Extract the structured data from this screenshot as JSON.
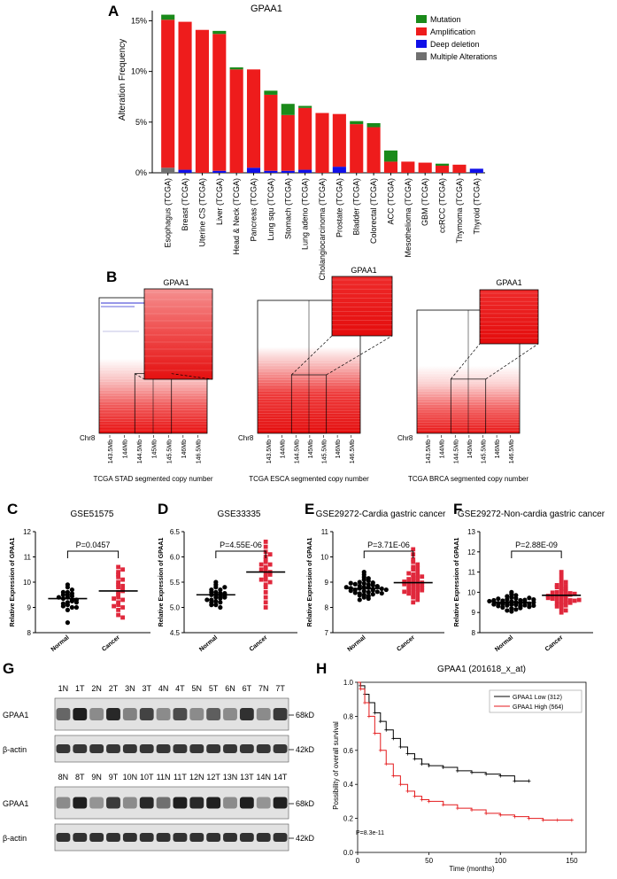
{
  "panels": {
    "A": "A",
    "B": "B",
    "C": "C",
    "D": "D",
    "E": "E",
    "F": "F",
    "G": "G",
    "H": "H"
  },
  "colors": {
    "mutation": "#1a8a1a",
    "amplification": "#ee1c1c",
    "deep_deletion": "#1010e8",
    "multiple": "#707070"
  },
  "panel_b": {
    "gene": "GPAA1",
    "chr": "Chr8",
    "ticks": [
      "143.5Mb",
      "144Mb",
      "144.5Mb",
      "145Mb",
      "145.5Mb",
      "146Mb",
      "146.5Mb"
    ],
    "titles": [
      "TCGA STAD segmented copy number",
      "TCGA ESCA segmented copy number",
      "TCGA BRCA segmented copy number"
    ]
  },
  "panel_g": {
    "lane_labels_top": [
      "1N",
      "1T",
      "2N",
      "2T",
      "3N",
      "3T",
      "4N",
      "4T",
      "5N",
      "5T",
      "6N",
      "6T",
      "7N",
      "7T"
    ],
    "lane_labels_bottom": [
      "8N",
      "8T",
      "9N",
      "9T",
      "10N",
      "10T",
      "11N",
      "11T",
      "12N",
      "12T",
      "13N",
      "13T",
      "14N",
      "14T"
    ],
    "gpaa1": "GPAA1",
    "actin": "β-actin",
    "kd_gpaa1": "68kD",
    "kd_actin": "42kD"
  },
  "chart_data": [
    {
      "id": "A",
      "type": "bar",
      "title": "GPAA1",
      "ylabel": "Alteration Frequency",
      "ylim": [
        0,
        16
      ],
      "yticks": [
        "0%",
        "5%",
        "10%",
        "15%"
      ],
      "legend": [
        "Mutation",
        "Amplification",
        "Deep deletion",
        "Multiple Alterations"
      ],
      "categories": [
        "Esophagus (TCGA)",
        "Breast (TCGA)",
        "Uterine CS (TCGA)",
        "Liver (TCGA)",
        "Head & Neck (TCGA)",
        "Pancreas (TCGA)",
        "Lung squ (TCGA)",
        "Stomach (TCGA)",
        "Lung adeno (TCGA)",
        "Cholangiocarcinoma (TCGA)",
        "Prostate (TCGA)",
        "Bladder (TCGA)",
        "Colorectal (TCGA)",
        "ACC (TCGA)",
        "Mesothelioma (TCGA)",
        "GBM (TCGA)",
        "ccRCC (TCGA)",
        "Thymoma (TCGA)",
        "Thyroid (TCGA)"
      ],
      "series": [
        {
          "name": "Multiple Alterations",
          "values": [
            0.5,
            0,
            0,
            0,
            0,
            0,
            0,
            0,
            0,
            0,
            0,
            0,
            0,
            0,
            0,
            0,
            0,
            0,
            0
          ]
        },
        {
          "name": "Deep deletion",
          "values": [
            0,
            0.3,
            0,
            0.2,
            0,
            0.5,
            0.2,
            0.2,
            0.3,
            0,
            0.6,
            0,
            0,
            0,
            0,
            0,
            0,
            0,
            0.4
          ]
        },
        {
          "name": "Amplification",
          "values": [
            14.6,
            14.6,
            14.1,
            13.5,
            10.2,
            9.7,
            7.5,
            5.5,
            6.1,
            5.9,
            5.2,
            4.8,
            4.5,
            1.1,
            1.1,
            1.0,
            0.7,
            0.8,
            0
          ]
        },
        {
          "name": "Mutation",
          "values": [
            0.5,
            0,
            0,
            0.3,
            0.2,
            0,
            0.4,
            1.1,
            0.2,
            0,
            0,
            0.3,
            0.4,
            1.1,
            0,
            0,
            0.2,
            0,
            0
          ]
        }
      ]
    },
    {
      "id": "C",
      "type": "scatter",
      "title": "GSE51575",
      "ylabel": "Relative Expression of GPAA1",
      "categories": [
        "Normal",
        "Cancer"
      ],
      "ylim": [
        8,
        12
      ],
      "yticks": [
        "8",
        "9",
        "10",
        "11",
        "12"
      ],
      "pvalue": "P=0.0457",
      "means": [
        9.35,
        9.65
      ],
      "normal": [
        9.8,
        9.6,
        9.5,
        9.4,
        9.3,
        9.2,
        9.45,
        9.35,
        9.1,
        9.0,
        9.7,
        9.55,
        9.25,
        9.15,
        8.9,
        9.05,
        9.5,
        9.3,
        9.6,
        8.4,
        9.9,
        9.2,
        9.4,
        9.0
      ],
      "cancer": [
        10.6,
        10.4,
        10.2,
        10.0,
        9.9,
        9.8,
        9.7,
        9.6,
        9.5,
        9.4,
        9.3,
        9.2,
        9.1,
        9.0,
        8.9,
        8.7,
        10.5,
        10.1,
        9.85,
        9.65,
        9.35,
        9.05,
        8.6,
        10.3
      ]
    },
    {
      "id": "D",
      "type": "scatter",
      "title": "GSE33335",
      "ylabel": "Relative Expression of GPAA1",
      "categories": [
        "Normal",
        "Cancer"
      ],
      "ylim": [
        4.5,
        6.5
      ],
      "yticks": [
        "4.5",
        "5.0",
        "5.5",
        "6.0",
        "6.5"
      ],
      "pvalue": "P=4.55E-06",
      "means": [
        5.25,
        5.7
      ],
      "normal": [
        5.5,
        5.45,
        5.4,
        5.35,
        5.3,
        5.28,
        5.25,
        5.22,
        5.2,
        5.18,
        5.15,
        5.12,
        5.1,
        5.05,
        5.0,
        5.3,
        5.25,
        5.2,
        5.35,
        5.15,
        5.1,
        5.4,
        5.05,
        5.28,
        5.22
      ],
      "cancer": [
        6.3,
        6.2,
        6.1,
        6.0,
        5.95,
        5.9,
        5.85,
        5.8,
        5.75,
        5.7,
        5.65,
        5.6,
        5.55,
        5.5,
        5.45,
        5.4,
        5.3,
        5.2,
        5.1,
        5.0,
        5.75,
        5.65,
        5.85,
        6.05,
        5.55
      ]
    },
    {
      "id": "E",
      "type": "scatter",
      "title": "GSE29272-Cardia gastric cancer",
      "ylabel": "Relative Expression of GPAA1",
      "categories": [
        "Normal",
        "Cancer"
      ],
      "ylim": [
        7,
        11
      ],
      "yticks": [
        "7",
        "8",
        "9",
        "10",
        "11"
      ],
      "pvalue": "P=3.71E-06",
      "means": [
        8.75,
        8.98
      ],
      "normal": [
        9.3,
        9.2,
        9.1,
        9.05,
        9.0,
        8.95,
        8.9,
        8.85,
        8.8,
        8.78,
        8.75,
        8.72,
        8.7,
        8.65,
        8.6,
        8.55,
        8.5,
        8.45,
        8.4,
        8.35,
        8.3,
        9.15,
        8.98,
        8.82,
        8.68,
        8.58,
        8.48,
        8.88,
        8.76,
        8.62,
        8.92,
        8.74,
        8.66,
        8.84,
        8.56,
        8.96,
        8.52,
        8.8,
        8.7,
        9.4
      ],
      "cancer": [
        10.3,
        10.1,
        9.9,
        9.8,
        9.7,
        9.6,
        9.5,
        9.4,
        9.3,
        9.25,
        9.2,
        9.15,
        9.1,
        9.05,
        9.0,
        8.95,
        8.9,
        8.85,
        8.8,
        8.75,
        8.7,
        8.65,
        8.6,
        8.55,
        8.5,
        8.45,
        8.4,
        8.3,
        8.2,
        9.35,
        9.12,
        8.98,
        8.88,
        8.78,
        8.68,
        9.55,
        9.02,
        8.92,
        8.62,
        9.22
      ]
    },
    {
      "id": "F",
      "type": "scatter",
      "title": "GSE29272-Non-cardia gastric cancer",
      "ylabel": "Relative Expression of GPAA1",
      "categories": [
        "Normal",
        "Cancer"
      ],
      "ylim": [
        8,
        13
      ],
      "yticks": [
        "8",
        "9",
        "10",
        "11",
        "12",
        "13"
      ],
      "pvalue": "P=2.88E-09",
      "means": [
        9.5,
        9.85
      ],
      "normal": [
        10.0,
        9.9,
        9.85,
        9.8,
        9.75,
        9.7,
        9.65,
        9.6,
        9.55,
        9.5,
        9.48,
        9.45,
        9.42,
        9.4,
        9.38,
        9.35,
        9.3,
        9.25,
        9.2,
        9.15,
        9.1,
        9.05,
        9.52,
        9.46,
        9.58,
        9.62,
        9.36,
        9.44,
        9.68,
        9.32,
        9.54,
        9.28,
        9.72,
        9.5,
        9.4,
        9.6,
        9.22,
        9.56,
        9.34,
        9.64
      ],
      "cancer": [
        11.0,
        10.8,
        10.6,
        10.5,
        10.4,
        10.3,
        10.2,
        10.1,
        10.05,
        10.0,
        9.95,
        9.9,
        9.85,
        9.8,
        9.75,
        9.7,
        9.65,
        9.6,
        9.55,
        9.5,
        9.45,
        9.4,
        9.35,
        9.3,
        9.2,
        9.1,
        9.0,
        10.15,
        9.98,
        9.88,
        9.78,
        9.68,
        9.58,
        9.48,
        10.35,
        9.92,
        9.82,
        9.72,
        9.62,
        10.25
      ]
    },
    {
      "id": "H",
      "type": "line",
      "title": "GPAA1 (201618_x_at)",
      "xlabel": "Time (months)",
      "ylabel": "Possibility of overall survival",
      "xlim": [
        0,
        160
      ],
      "ylim": [
        0,
        1
      ],
      "xticks": [
        "0",
        "50",
        "100",
        "150"
      ],
      "yticks": [
        "0.0",
        "0.2",
        "0.4",
        "0.6",
        "0.8",
        "1.0"
      ],
      "pvalue": "P=8.3e-11",
      "series": [
        {
          "name": "GPAA1 Low (312)",
          "color": "#000000",
          "x": [
            0,
            2,
            5,
            8,
            12,
            16,
            20,
            25,
            30,
            35,
            40,
            45,
            50,
            60,
            70,
            80,
            90,
            100,
            110,
            120
          ],
          "y": [
            1.0,
            0.98,
            0.93,
            0.88,
            0.82,
            0.77,
            0.72,
            0.67,
            0.62,
            0.58,
            0.55,
            0.52,
            0.51,
            0.5,
            0.48,
            0.47,
            0.46,
            0.45,
            0.42,
            0.42
          ]
        },
        {
          "name": "GPAA1 High (564)",
          "color": "#e41a1c",
          "x": [
            0,
            2,
            5,
            8,
            12,
            16,
            20,
            25,
            30,
            35,
            40,
            45,
            50,
            60,
            70,
            80,
            90,
            100,
            110,
            120,
            130,
            140,
            150
          ],
          "y": [
            1.0,
            0.96,
            0.88,
            0.8,
            0.7,
            0.6,
            0.52,
            0.45,
            0.4,
            0.36,
            0.33,
            0.31,
            0.3,
            0.28,
            0.26,
            0.25,
            0.23,
            0.22,
            0.21,
            0.2,
            0.19,
            0.19,
            0.19
          ]
        }
      ]
    }
  ]
}
